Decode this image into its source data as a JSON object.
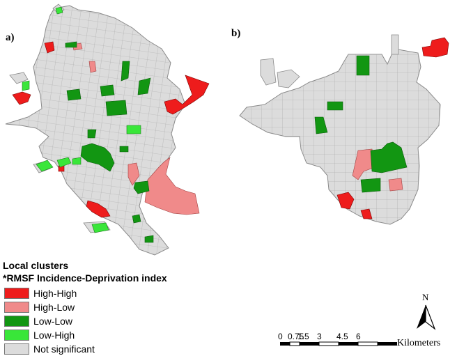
{
  "panels": {
    "a": "a)",
    "b": "b)"
  },
  "legend": {
    "title": "Local clusters",
    "subtitle": "*RMSF Incidence-Deprivation index",
    "items": [
      {
        "label": "High-High",
        "color": "#ee1c1c"
      },
      {
        "label": "High-Low",
        "color": "#f08a8a"
      },
      {
        "label": "Low-Low",
        "color": "#129612"
      },
      {
        "label": "Low-High",
        "color": "#39e639"
      },
      {
        "label": "Not significant",
        "color": "#dcdcdc"
      }
    ]
  },
  "scale_bar": {
    "ticks": [
      "0",
      "0.75",
      "1.5",
      "3",
      "4.5",
      "6"
    ],
    "unit": "Kilometers"
  },
  "north_arrow": {
    "letter": "N"
  },
  "colors": {
    "boundary": "#9a9a9a",
    "background": "#ffffff"
  }
}
